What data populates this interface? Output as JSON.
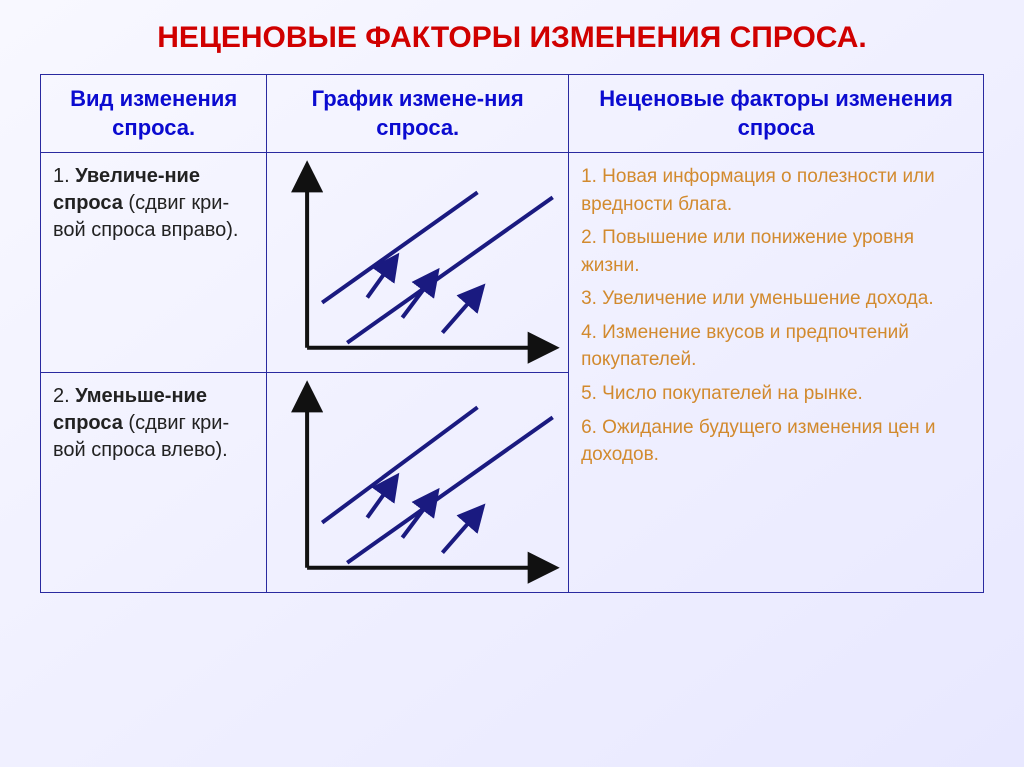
{
  "colors": {
    "title": "#d00000",
    "header_text": "#0b0bd0",
    "border": "#2a2aa0",
    "text": "#222222",
    "factor_text": "#d28a2e",
    "line": "#1a1a80",
    "axis": "#111111"
  },
  "title": "НЕЦЕНОВЫЕ ФАКТОРЫ ИЗМЕНЕНИЯ СПРОСА.",
  "headers": {
    "c1": "Вид изменения спроса.",
    "c2": "График измене-ния спроса.",
    "c3": "Неценовые факторы изменения спроса"
  },
  "rows": {
    "r1": {
      "num": "1. ",
      "bold": "Увеличе-ние спроса",
      "rest": " (сдвиг кри-вой спроса вправо)."
    },
    "r2": {
      "num": "2. ",
      "bold": "Уменьше-ние спроса",
      "rest": " (сдвиг кри-вой спроса влево)."
    }
  },
  "chart_up": {
    "axis_origin": [
      40,
      190
    ],
    "axis_xend": [
      280,
      190
    ],
    "axis_yend": [
      40,
      15
    ],
    "line1": [
      [
        55,
        145
      ],
      [
        210,
        35
      ]
    ],
    "line2": [
      [
        80,
        185
      ],
      [
        285,
        40
      ]
    ],
    "arrows": [
      [
        [
          100,
          140
        ],
        [
          125,
          105
        ]
      ],
      [
        [
          135,
          160
        ],
        [
          165,
          120
        ]
      ],
      [
        [
          175,
          175
        ],
        [
          210,
          135
        ]
      ]
    ],
    "stroke_w": 4
  },
  "chart_down": {
    "axis_origin": [
      40,
      190
    ],
    "axis_xend": [
      280,
      190
    ],
    "axis_yend": [
      40,
      15
    ],
    "line1": [
      [
        55,
        145
      ],
      [
        210,
        30
      ]
    ],
    "line2": [
      [
        80,
        185
      ],
      [
        285,
        40
      ]
    ],
    "arrows": [
      [
        [
          125,
          105
        ],
        [
          100,
          140
        ]
      ],
      [
        [
          165,
          120
        ],
        [
          135,
          160
        ]
      ],
      [
        [
          210,
          135
        ],
        [
          175,
          175
        ]
      ]
    ],
    "stroke_w": 4,
    "render_arrows_up": true
  },
  "factors": {
    "f1": "1. Новая информация о полезности или вредности блага.",
    "f2": "2. Повышение или понижение уровня жизни.",
    "f3": "3. Увеличение или уменьшение дохода.",
    "f4": "4. Изменение вкусов и предпочтений покупателей.",
    "f5": "5. Число покупателей на рынке.",
    "f6": "6. Ожидание будущего изменения цен и доходов."
  }
}
